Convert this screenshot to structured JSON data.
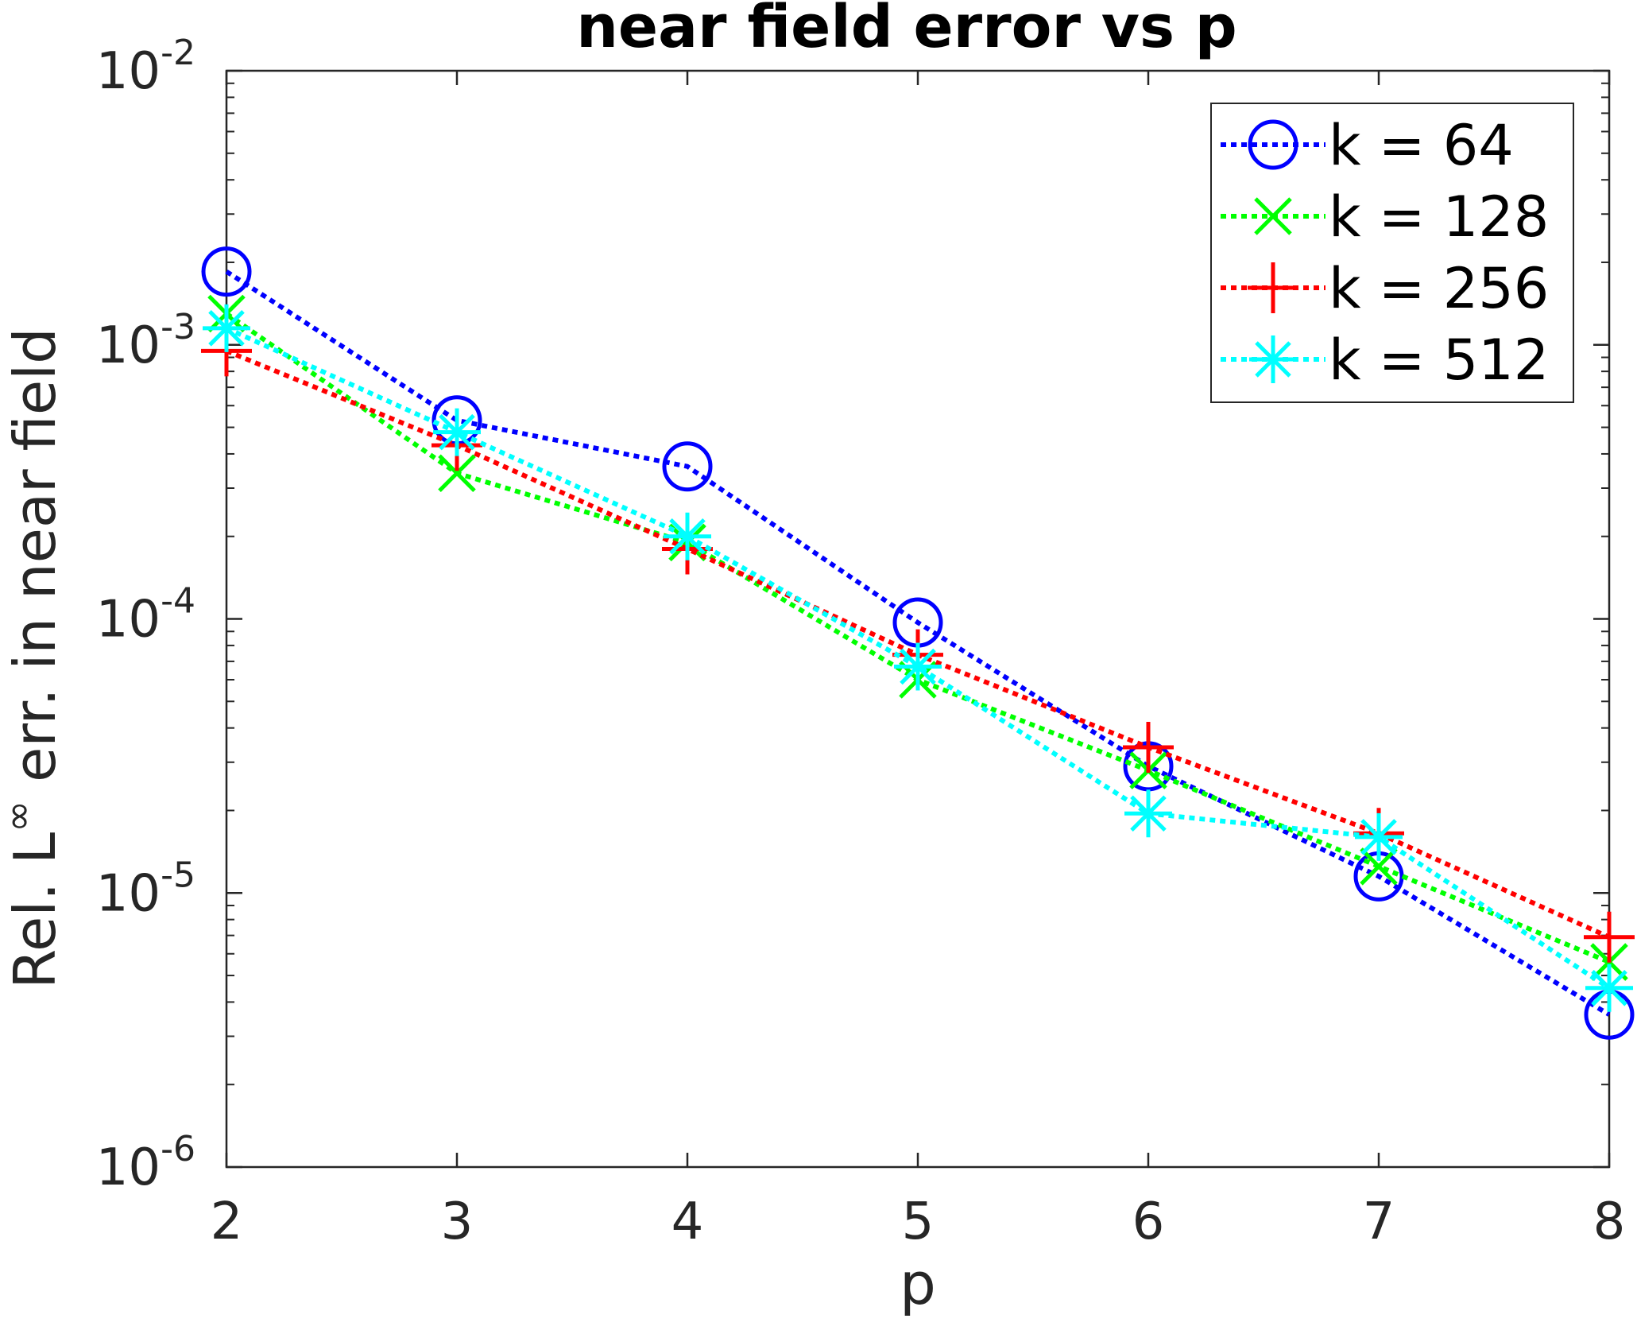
{
  "chart_data": {
    "type": "line",
    "title": "near field error vs p",
    "xlabel": "p",
    "ylabel": "Rel. L∞ err. in near field",
    "ylabel_parts": {
      "before": "Rel. L",
      "sup": "∞",
      "after": " err. in near field"
    },
    "x": [
      2,
      3,
      4,
      5,
      6,
      7,
      8
    ],
    "xlim": [
      2,
      8
    ],
    "ylim": [
      1e-06,
      0.01
    ],
    "yscale": "log",
    "x_ticks": [
      "2",
      "3",
      "4",
      "5",
      "6",
      "7",
      "8"
    ],
    "y_ticks": [
      {
        "value": 0.01,
        "base": "10",
        "exp": "-2"
      },
      {
        "value": 0.001,
        "base": "10",
        "exp": "-3"
      },
      {
        "value": 0.0001,
        "base": "10",
        "exp": "-4"
      },
      {
        "value": 1e-05,
        "base": "10",
        "exp": "-5"
      },
      {
        "value": 1e-06,
        "base": "10",
        "exp": "-6"
      }
    ],
    "legend_position": "top-right",
    "series": [
      {
        "name": "k = 64",
        "color": "#0000ff",
        "marker": "circle",
        "values": [
          0.00185,
          0.00053,
          0.00036,
          9.7e-05,
          2.9e-05,
          1.15e-05,
          3.6e-06
        ]
      },
      {
        "name": "k = 128",
        "color": "#00ff00",
        "marker": "x",
        "values": [
          0.0013,
          0.00034,
          0.00019,
          6e-05,
          2.8e-05,
          1.25e-05,
          5.6e-06
        ]
      },
      {
        "name": "k = 256",
        "color": "#ff0000",
        "marker": "plus",
        "values": [
          0.00095,
          0.00043,
          0.00018,
          7.4e-05,
          3.4e-05,
          1.65e-05,
          6.9e-06
        ]
      },
      {
        "name": "k = 512",
        "color": "#00ffff",
        "marker": "asterisk",
        "values": [
          0.00115,
          0.00048,
          0.0002,
          6.7e-05,
          1.95e-05,
          1.6e-05,
          4.5e-06
        ]
      }
    ]
  }
}
